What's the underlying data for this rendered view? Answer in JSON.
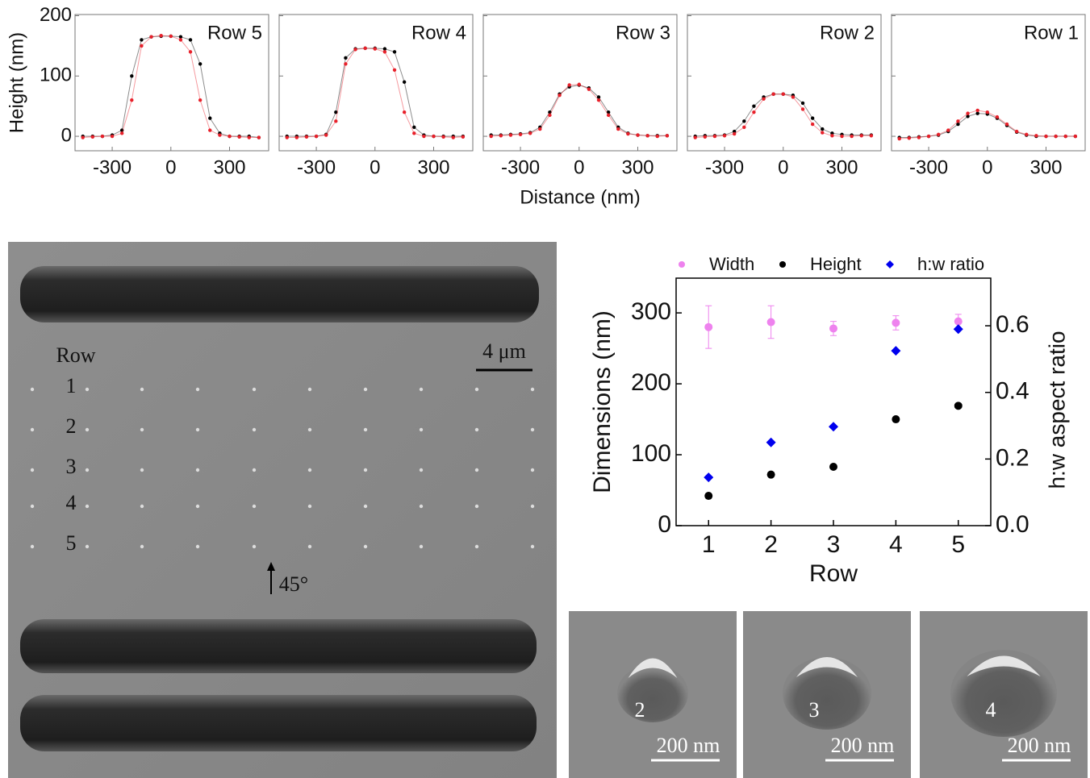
{
  "chart_data": [
    {
      "type": "scatter",
      "title": "Row 5",
      "ylabel": "Height (nm)",
      "xlim": [
        -490,
        500
      ],
      "xticks": [
        -300,
        0,
        300
      ],
      "ylim": [
        -24,
        202
      ],
      "yticks": [
        0,
        100,
        200
      ],
      "x": [
        -450,
        -400,
        -350,
        -300,
        -250,
        -200,
        -150,
        -100,
        -50,
        0,
        50,
        100,
        150,
        200,
        250,
        300,
        350,
        400,
        450
      ],
      "series": [
        {
          "color": "#000000",
          "values": [
            0,
            0,
            0,
            2,
            10,
            100,
            160,
            165,
            166,
            166,
            165,
            160,
            120,
            30,
            5,
            0,
            0,
            0,
            -2
          ]
        },
        {
          "color": "#e8202a",
          "values": [
            -2,
            -1,
            0,
            0,
            5,
            60,
            150,
            165,
            167,
            166,
            160,
            140,
            60,
            10,
            2,
            0,
            -1,
            -2,
            -2
          ]
        }
      ]
    },
    {
      "type": "scatter",
      "title": "Row 4",
      "xlim": [
        -490,
        500
      ],
      "xticks": [
        -300,
        0,
        300
      ],
      "ylim": [
        -24,
        202
      ],
      "yticks": [
        0,
        100,
        200
      ],
      "x": [
        -450,
        -400,
        -350,
        -300,
        -250,
        -200,
        -150,
        -100,
        -50,
        0,
        50,
        100,
        150,
        200,
        250,
        300,
        350,
        400,
        450
      ],
      "series": [
        {
          "color": "#000000",
          "values": [
            0,
            0,
            0,
            0,
            3,
            40,
            130,
            145,
            146,
            146,
            145,
            140,
            90,
            15,
            2,
            0,
            0,
            0,
            0
          ]
        },
        {
          "color": "#e8202a",
          "values": [
            -2,
            -2,
            -1,
            0,
            2,
            25,
            120,
            144,
            146,
            145,
            140,
            110,
            40,
            5,
            0,
            0,
            -1,
            -2,
            -1
          ]
        }
      ]
    },
    {
      "type": "scatter",
      "title": "Row 3",
      "xlabel": "Distance (nm)",
      "xlim": [
        -490,
        500
      ],
      "xticks": [
        -300,
        0,
        300
      ],
      "ylim": [
        -24,
        202
      ],
      "yticks": [
        0,
        100,
        200
      ],
      "x": [
        -450,
        -400,
        -350,
        -300,
        -250,
        -200,
        -150,
        -100,
        -50,
        0,
        50,
        100,
        150,
        200,
        250,
        300,
        350,
        400,
        450
      ],
      "series": [
        {
          "color": "#000000",
          "values": [
            2,
            2,
            3,
            4,
            6,
            15,
            40,
            70,
            82,
            85,
            80,
            65,
            40,
            15,
            5,
            2,
            1,
            1,
            1
          ]
        },
        {
          "color": "#e8202a",
          "values": [
            0,
            1,
            2,
            3,
            5,
            12,
            35,
            68,
            85,
            86,
            78,
            60,
            35,
            12,
            4,
            2,
            1,
            0,
            1
          ]
        }
      ]
    },
    {
      "type": "scatter",
      "title": "Row 2",
      "xlim": [
        -490,
        500
      ],
      "xticks": [
        -300,
        0,
        300
      ],
      "ylim": [
        -24,
        202
      ],
      "yticks": [
        0,
        100,
        200
      ],
      "x": [
        -450,
        -400,
        -350,
        -300,
        -250,
        -200,
        -150,
        -100,
        -50,
        0,
        50,
        100,
        150,
        200,
        250,
        300,
        350,
        400,
        450
      ],
      "series": [
        {
          "color": "#000000",
          "values": [
            0,
            1,
            1,
            2,
            8,
            25,
            50,
            65,
            70,
            70,
            68,
            55,
            30,
            12,
            5,
            3,
            2,
            2,
            2
          ]
        },
        {
          "color": "#e8202a",
          "values": [
            -2,
            -1,
            0,
            1,
            4,
            15,
            40,
            62,
            70,
            70,
            65,
            45,
            20,
            6,
            1,
            0,
            0,
            1,
            1
          ]
        }
      ]
    },
    {
      "type": "scatter",
      "title": "Row 1",
      "xlim": [
        -490,
        500
      ],
      "xticks": [
        -300,
        0,
        300
      ],
      "ylim": [
        -24,
        202
      ],
      "yticks": [
        0,
        100,
        200
      ],
      "x": [
        -450,
        -400,
        -350,
        -300,
        -250,
        -200,
        -150,
        -100,
        -50,
        0,
        50,
        100,
        150,
        200,
        250,
        300,
        350,
        400,
        450
      ],
      "series": [
        {
          "color": "#000000",
          "values": [
            -2,
            -2,
            -1,
            0,
            2,
            8,
            20,
            33,
            38,
            37,
            30,
            18,
            7,
            2,
            0,
            0,
            0,
            0,
            0
          ]
        },
        {
          "color": "#e8202a",
          "values": [
            -4,
            -3,
            -2,
            0,
            3,
            10,
            25,
            38,
            43,
            40,
            32,
            20,
            8,
            3,
            1,
            0,
            0,
            0,
            0
          ]
        }
      ]
    },
    {
      "type": "dimensions",
      "xlabel": "Row",
      "ylabel": "Dimensions (nm)",
      "y2label": "h:w aspect ratio",
      "x": [
        1,
        2,
        3,
        4,
        5
      ],
      "xlim": [
        0.48,
        5.52
      ],
      "xticks": [
        1,
        2,
        3,
        4,
        5
      ],
      "ylim": [
        0,
        349
      ],
      "yticks": [
        0,
        100,
        200,
        300
      ],
      "y2lim": [
        0,
        0.743
      ],
      "y2ticks": [
        {
          "value": 0,
          "label": "0.0"
        },
        {
          "value": 0.2,
          "label": "0.2"
        },
        {
          "value": 0.4,
          "label": "0.4"
        },
        {
          "value": 0.6,
          "label": "0.6"
        }
      ],
      "series": [
        {
          "name": "Width",
          "color": "#ee82ee",
          "marker": "circle",
          "values": [
            280,
            287,
            278,
            286,
            288
          ],
          "errors": [
            30,
            23,
            10,
            10,
            10
          ]
        },
        {
          "name": "Height",
          "color": "#000000",
          "marker": "circle",
          "values": [
            42,
            72,
            83,
            150,
            169
          ]
        },
        {
          "name": "h:w ratio",
          "color": "#0000ee",
          "marker": "diamond",
          "axis": "y2",
          "values": [
            0.145,
            0.25,
            0.297,
            0.525,
            0.59
          ]
        }
      ]
    }
  ],
  "sem": {
    "row_label": "Row",
    "rows": [
      "1",
      "2",
      "3",
      "4",
      "5"
    ],
    "scale": "4 μm",
    "angle": "45°",
    "insets": [
      {
        "label": "2",
        "scale": "200 nm"
      },
      {
        "label": "3",
        "scale": "200 nm"
      },
      {
        "label": "4",
        "scale": "200 nm"
      }
    ]
  }
}
